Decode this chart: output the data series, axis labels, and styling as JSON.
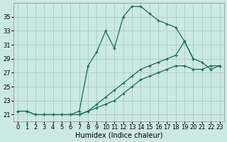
{
  "xlabel": "Humidex (Indice chaleur)",
  "background_color": "#cce8e4",
  "grid_color": "#aacfcb",
  "line_color": "#1a6b5a",
  "xlim": [
    -0.5,
    23.5
  ],
  "ylim": [
    20.0,
    37.0
  ],
  "yticks": [
    21,
    23,
    25,
    27,
    29,
    31,
    33,
    35
  ],
  "xticks": [
    0,
    1,
    2,
    3,
    4,
    5,
    6,
    7,
    8,
    9,
    10,
    11,
    12,
    13,
    14,
    15,
    16,
    17,
    18,
    19,
    20,
    21,
    22,
    23
  ],
  "series": [
    {
      "x": [
        0,
        1,
        2,
        3,
        4,
        5,
        6,
        7,
        8,
        9,
        10,
        11,
        12,
        13,
        14,
        15,
        16,
        17,
        18,
        19,
        20
      ],
      "y": [
        21.5,
        21.5,
        21.0,
        21.0,
        21.0,
        21.0,
        21.0,
        21.5,
        28.0,
        30.0,
        33.0,
        30.5,
        35.0,
        36.5,
        36.5,
        35.5,
        34.5,
        34.0,
        33.5,
        31.5,
        29.0
      ]
    },
    {
      "x": [
        0,
        1,
        2,
        3,
        4,
        5,
        6,
        7,
        8,
        9,
        10,
        11,
        12,
        13,
        14,
        15,
        16,
        17,
        18,
        19,
        20,
        21,
        22,
        23
      ],
      "y": [
        21.5,
        21.5,
        21.0,
        21.0,
        21.0,
        21.0,
        21.0,
        21.0,
        21.5,
        22.0,
        22.5,
        23.0,
        24.0,
        25.0,
        26.0,
        26.5,
        27.0,
        27.5,
        28.0,
        28.0,
        27.5,
        27.5,
        28.0,
        28.0
      ]
    },
    {
      "x": [
        7,
        8,
        9,
        10,
        11,
        12,
        13,
        14,
        15,
        16,
        17,
        18,
        19,
        20,
        21,
        22,
        23
      ],
      "y": [
        21.0,
        21.5,
        22.5,
        23.5,
        24.5,
        25.5,
        26.5,
        27.5,
        28.0,
        28.5,
        29.0,
        29.5,
        31.5,
        29.0,
        28.5,
        27.5,
        28.0
      ]
    }
  ],
  "font_size": 7
}
